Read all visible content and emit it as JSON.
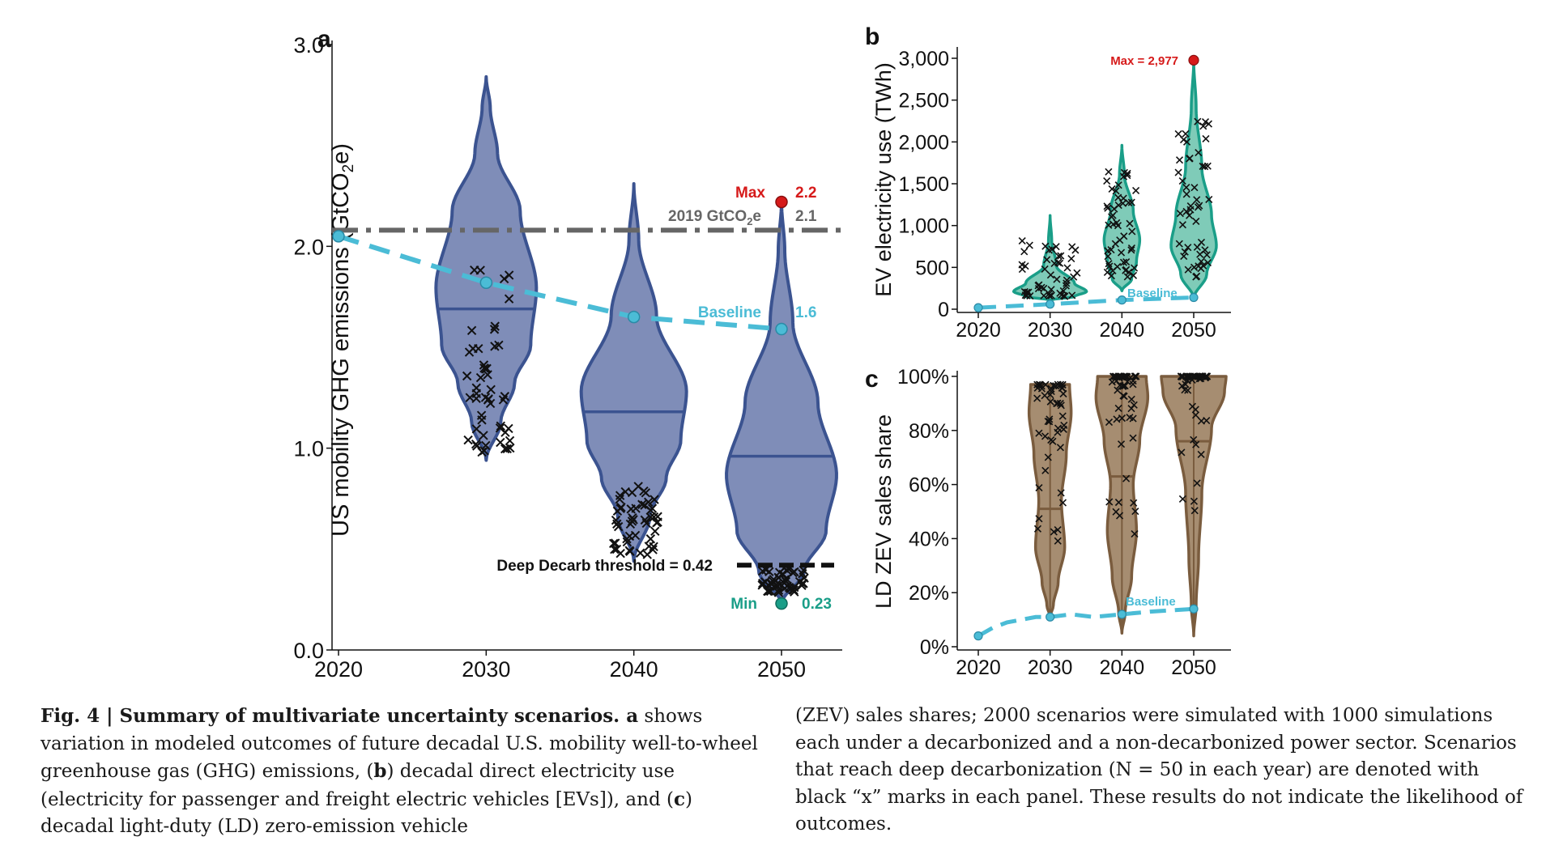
{
  "colors": {
    "violin_a_fill": "#7f8db8",
    "violin_a_stroke": "#3b5390",
    "violin_b_fill": "#7fcbb8",
    "violin_b_stroke": "#1a9e88",
    "violin_c_fill": "#a68d71",
    "violin_c_stroke": "#7a5c3e",
    "baseline": "#4bbcd6",
    "max": "#d61a1a",
    "min": "#1a9e88",
    "reference": "#666666",
    "threshold": "#111111"
  },
  "chart_data": [
    {
      "panel_label": "a",
      "type": "violin",
      "ylabel_main": "US mobility GHG emissions (GtCO",
      "ylabel_sub": "2",
      "ylabel_end": "e)",
      "x_ticks": [
        "2020",
        "2030",
        "2040",
        "2050"
      ],
      "y_ticks": [
        "0.0",
        "1.0",
        "2.0",
        "3.0"
      ],
      "ylim": [
        0,
        3.0
      ],
      "xlim": [
        2020,
        2055
      ],
      "violins": [
        {
          "x": 2030,
          "min": 0.94,
          "max": 2.84,
          "median": 1.69
        },
        {
          "x": 2040,
          "min": 0.44,
          "max": 2.31,
          "median": 1.18
        },
        {
          "x": 2050,
          "min": 0.23,
          "max": 2.22,
          "median": 0.96
        }
      ],
      "baseline_series": {
        "x": [
          2020,
          2030,
          2040,
          2050
        ],
        "y": [
          2.05,
          1.82,
          1.65,
          1.59
        ]
      },
      "reference_2019": 2.08,
      "deep_decarb_threshold": 0.42,
      "annotations": {
        "max_label": "Max",
        "max_value": "2.2",
        "ref_label_main": "2019 GtCO",
        "ref_label_sub": "2",
        "ref_label_end": "e",
        "ref_value": "2.1",
        "baseline_label": "Baseline",
        "baseline_value": "1.6",
        "threshold_label": "Deep Decarb threshold = 0.42",
        "min_label": "Min",
        "min_value": "0.23"
      }
    },
    {
      "panel_label": "b",
      "type": "violin",
      "ylabel": "EV electricity use (TWh)",
      "x_ticks": [
        "2020",
        "2030",
        "2040",
        "2050"
      ],
      "y_ticks": [
        "0",
        "500",
        "1,000",
        "1,500",
        "2,000",
        "2,500",
        "3,000"
      ],
      "ylim": [
        0,
        3000
      ],
      "xlim": [
        2020,
        2055
      ],
      "violins": [
        {
          "x": 2030,
          "min": 110,
          "max": 1120,
          "median": 300
        },
        {
          "x": 2040,
          "min": 220,
          "max": 1960,
          "median": 720
        },
        {
          "x": 2050,
          "min": 130,
          "max": 2977,
          "median": 1050
        }
      ],
      "baseline_series": {
        "x": [
          2020,
          2030,
          2040,
          2050
        ],
        "y": [
          18,
          60,
          110,
          140
        ]
      },
      "annotations": {
        "max_label": "Max = 2,977",
        "baseline_label": "Baseline"
      }
    },
    {
      "panel_label": "c",
      "type": "violin",
      "ylabel": "LD ZEV sales share",
      "x_ticks": [
        "2020",
        "2030",
        "2040",
        "2050"
      ],
      "y_ticks": [
        "0%",
        "20%",
        "40%",
        "60%",
        "80%",
        "100%"
      ],
      "ylim": [
        0,
        100
      ],
      "xlim": [
        2020,
        2055
      ],
      "violins": [
        {
          "x": 2030,
          "min": 11,
          "max": 97,
          "median": 51
        },
        {
          "x": 2040,
          "min": 5,
          "max": 100,
          "median": 63
        },
        {
          "x": 2050,
          "min": 4,
          "max": 100,
          "median": 76
        }
      ],
      "baseline_series": {
        "x": [
          2020,
          2030,
          2040,
          2050
        ],
        "y": [
          4,
          11,
          12,
          14
        ]
      },
      "annotations": {
        "baseline_label": "Baseline"
      }
    }
  ],
  "caption": {
    "left": [
      {
        "text": "Fig. 4 | Summary of multivariate uncertainty scenarios. ",
        "bold": true
      },
      {
        "text": "a",
        "bold": true
      },
      {
        "text": " shows variation in modeled outcomes of future decadal U.S. mobility well-to-wheel greenhouse gas (GHG) emissions, (",
        "bold": false
      },
      {
        "text": "b",
        "bold": true
      },
      {
        "text": ") decadal direct electricity use (electricity for passenger and freight electric vehicles [EVs]), and (",
        "bold": false
      },
      {
        "text": "c",
        "bold": true
      },
      {
        "text": ") decadal light-duty (LD) zero-emission vehicle",
        "bold": false
      }
    ],
    "right": "(ZEV) sales shares; 2000 scenarios were simulated with 1000 simulations each under a decarbonized and a non-decarbonized power sector. Scenarios that reach deep decarbonization (N = 50 in each year) are denoted with black “x” marks in each panel. These results do not indicate the likelihood of outcomes."
  }
}
